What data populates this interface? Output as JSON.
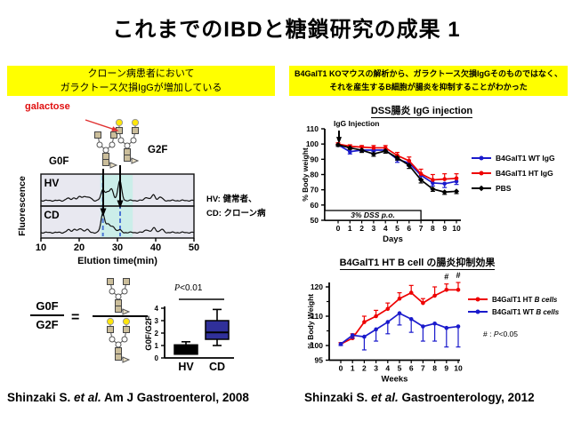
{
  "slide_title": "これまでのIBDと糖鎖研究の成果 1",
  "banners": {
    "left_line1": "クローン病患者において",
    "left_line2": "ガラクトース欠損IgGが増加している",
    "right_line1": "B4GalT1 KOマウスの解析から、ガラクトース欠損IgGそのものではなく、",
    "right_line2": "それを産生するB細胞が腸炎を抑制することがわかった"
  },
  "chromatogram_labels": {
    "galactose": "galactose",
    "g0f": "G0F",
    "g2f": "G2F",
    "note_line1": "HV: 健常者、",
    "note_line2": "CD: クローン病"
  },
  "ratio": {
    "num": "G0F",
    "den": "G2F",
    "eq": "="
  },
  "pvalue_box": {
    "p": "P",
    "rest": "<0.01"
  },
  "signote": {
    "pre": "# : ",
    "p": "P",
    "rest": "<0.05"
  },
  "citations": {
    "left_pre": "Shinzaki S. ",
    "left_it": "et al.",
    "left_post": " Am J Gastroenterol, 2008",
    "right_pre": "Shinzaki S. ",
    "right_it": "et al.",
    "right_post": " Gastroenterology, 2012"
  },
  "chart_data": [
    {
      "id": "dss-igg",
      "type": "line",
      "title": "DSS腸炎 IgG injection",
      "xlabel": "Days",
      "ylabel": "% Body weight",
      "x": [
        0,
        1,
        2,
        3,
        4,
        5,
        6,
        7,
        8,
        9,
        10
      ],
      "ylim": [
        50,
        110
      ],
      "yticks": [
        50,
        60,
        70,
        80,
        90,
        100,
        110
      ],
      "annotation_injection": "IgG Injection",
      "dss_box_label": "3% DSS p.o.",
      "dss_box_days": [
        0,
        7
      ],
      "series": [
        {
          "name": "B4GalT1 WT IgG",
          "color": "#1a1acc",
          "marker": "circle",
          "values": [
            99.5,
            95,
            96,
            96,
            96,
            90,
            87.5,
            79.5,
            74.5,
            74,
            75.5
          ],
          "err": [
            1,
            1.5,
            1,
            1,
            1,
            2,
            2,
            2.5,
            2,
            2.5,
            2
          ],
          "errdir": "down"
        },
        {
          "name": "B4GalT1 HT IgG",
          "color": "#ee0000",
          "marker": "circle",
          "values": [
            100,
            98.5,
            98,
            97.5,
            97.5,
            92.5,
            89,
            80.5,
            76.5,
            77,
            77.5
          ],
          "err": [
            0.8,
            1,
            1,
            1.5,
            1.5,
            2,
            2.5,
            3,
            3.5,
            3.5,
            3
          ],
          "errdir": "up"
        },
        {
          "name": "PBS",
          "color": "#000000",
          "marker": "diamond",
          "values": [
            99.5,
            97.5,
            96,
            93.5,
            95.5,
            91,
            86,
            76.5,
            70.5,
            68.5,
            69
          ],
          "err": [
            1,
            1,
            1.5,
            1.5,
            1.5,
            1.5,
            2,
            2,
            1.5,
            1.5,
            1.5
          ],
          "errdir": "down"
        }
      ]
    },
    {
      "id": "bcell",
      "type": "line",
      "title": "B4GalT1 HT B cell の腸炎抑制効果",
      "xlabel": "Weeks",
      "ylabel": "% Body Weight",
      "x": [
        0,
        1,
        2,
        3,
        4,
        5,
        6,
        7,
        8,
        9,
        10
      ],
      "ylim": [
        95,
        122
      ],
      "yticks": [
        95,
        100,
        110,
        120
      ],
      "yticks_minor": [
        105,
        115
      ],
      "hash_symbol": "#",
      "hash_x": [
        9,
        10
      ],
      "series": [
        {
          "name_pre": "B4GalT1 HT ",
          "name_it": "B cells",
          "color": "#ee0000",
          "marker": "circle",
          "values": [
            100.5,
            102.5,
            108,
            110,
            112.5,
            116,
            118,
            114.5,
            117,
            119,
            119
          ],
          "err": [
            0.5,
            1.5,
            2,
            2,
            2,
            2,
            2.5,
            1.5,
            3,
            2,
            2.5
          ],
          "errdir": "up"
        },
        {
          "name_pre": "B4GalT1 WT ",
          "name_it": "B cells",
          "color": "#1a1acc",
          "marker": "circle",
          "values": [
            100.5,
            103.5,
            103,
            105.5,
            108,
            111,
            109,
            106.5,
            107.5,
            106,
            106.5
          ],
          "err": [
            0.5,
            1,
            4.5,
            4,
            4,
            4,
            4.5,
            5,
            6,
            6.5,
            7
          ],
          "errdir": "down"
        }
      ]
    },
    {
      "id": "g0f-g2f-boxplot",
      "type": "boxplot",
      "ylabel": "G0F/G2F",
      "categories": [
        "HV",
        "CD"
      ],
      "yticks": [
        0,
        1,
        2,
        3,
        4
      ],
      "boxes": [
        {
          "label": "HV",
          "fill": "#000000",
          "whisker_low": 0.3,
          "q1": 0.3,
          "median": 0.7,
          "q3": 1.05,
          "whisker_high": 1.3
        },
        {
          "label": "CD",
          "fill": "#30309a",
          "whisker_low": 1.0,
          "q1": 1.5,
          "median": 2.05,
          "q3": 3.0,
          "whisker_high": 3.9
        }
      ]
    },
    {
      "id": "hplc",
      "type": "line",
      "ylabel": "Fluorescence",
      "xlabel": "Elution time(min)",
      "xlim": [
        10,
        50
      ],
      "xticks": [
        10,
        20,
        30,
        40,
        50
      ],
      "highlight_band_min": [
        25.5,
        34
      ],
      "marker_lines_min": [
        26.2,
        30.7
      ],
      "panels": [
        {
          "label": "HV",
          "peaks": [
            [
              17,
              0.1
            ],
            [
              18.6,
              0.13
            ],
            [
              20.2,
              0.18
            ],
            [
              21.5,
              0.2
            ],
            [
              22.8,
              0.13
            ],
            [
              26.2,
              0.5
            ],
            [
              27.4,
              0.34
            ],
            [
              28.5,
              0.5
            ],
            [
              30.6,
              0.92
            ],
            [
              37.6,
              0.16
            ],
            [
              39.4,
              0.26
            ],
            [
              41.2,
              0.16
            ]
          ]
        },
        {
          "label": "CD",
          "peaks": [
            [
              17.2,
              0.12
            ],
            [
              18.8,
              0.16
            ],
            [
              20.4,
              0.18
            ],
            [
              22,
              0.14
            ],
            [
              26.2,
              0.9
            ],
            [
              27.6,
              0.38
            ],
            [
              28.9,
              0.28
            ],
            [
              30.5,
              0.12
            ],
            [
              37.6,
              0.14
            ],
            [
              39.6,
              0.22
            ],
            [
              41.6,
              0.14
            ]
          ]
        }
      ]
    }
  ]
}
